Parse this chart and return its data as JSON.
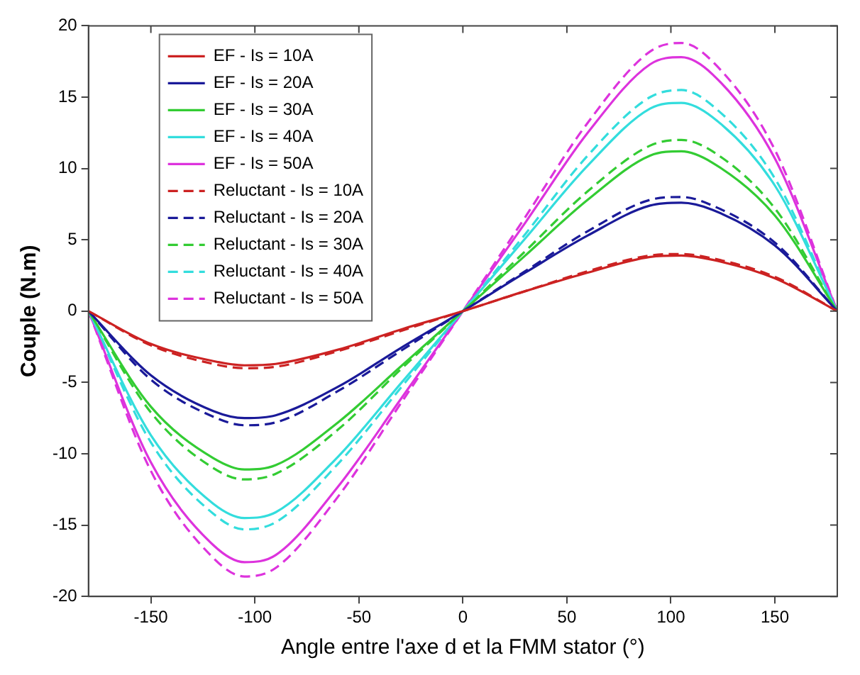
{
  "chart_data": {
    "type": "line",
    "xlabel": "Angle entre l'axe d et la FMM stator (°)",
    "ylabel": "Couple (N.m)",
    "x": [
      -180,
      -150,
      -120,
      -105,
      -90,
      -60,
      -30,
      0,
      30,
      60,
      90,
      105,
      120,
      150,
      180
    ],
    "xlim": [
      -180,
      180
    ],
    "xticks": [
      -150,
      -100,
      -50,
      0,
      50,
      100,
      150
    ],
    "ylim": [
      -20,
      20
    ],
    "yticks": [
      -20,
      -15,
      -10,
      -5,
      0,
      5,
      10,
      15,
      20
    ],
    "grid": false,
    "legend": "top left",
    "marker": "none",
    "series": [
      {
        "name": "EF - Is = 10A",
        "color": "#cc2222",
        "line_style": "solid",
        "values": [
          0,
          -2.3,
          -3.5,
          -3.8,
          -3.7,
          -2.7,
          -1.3,
          0,
          1.4,
          2.7,
          3.8,
          3.9,
          3.6,
          2.3,
          0
        ]
      },
      {
        "name": "EF - Is = 20A",
        "color": "#1a1a99",
        "line_style": "solid",
        "values": [
          0,
          -4.5,
          -7.0,
          -7.5,
          -7.3,
          -5.3,
          -2.6,
          0,
          2.7,
          5.3,
          7.4,
          7.6,
          7.1,
          4.6,
          0
        ]
      },
      {
        "name": "EF - Is = 30A",
        "color": "#33cc33",
        "line_style": "solid",
        "values": [
          0,
          -6.7,
          -10.3,
          -11.1,
          -10.8,
          -7.8,
          -3.9,
          0,
          3.9,
          7.8,
          10.9,
          11.2,
          10.4,
          6.7,
          0
        ]
      },
      {
        "name": "EF - Is = 40A",
        "color": "#33dddd",
        "line_style": "solid",
        "values": [
          0,
          -8.7,
          -13.5,
          -14.5,
          -14.1,
          -10.2,
          -5.1,
          0,
          5.1,
          10.2,
          14.2,
          14.6,
          13.6,
          8.8,
          0
        ]
      },
      {
        "name": "EF - Is = 50A",
        "color": "#dd33dd",
        "line_style": "solid",
        "values": [
          0,
          -10.6,
          -16.4,
          -17.6,
          -17.1,
          -12.3,
          -6.2,
          0,
          6.2,
          12.5,
          17.3,
          17.8,
          16.6,
          10.7,
          0
        ]
      },
      {
        "name": "Reluctant - Is = 10A",
        "color": "#cc2222",
        "line_style": "dashed",
        "values": [
          0,
          -2.4,
          -3.7,
          -4.0,
          -3.9,
          -2.8,
          -1.4,
          0,
          1.4,
          2.8,
          3.9,
          4.0,
          3.7,
          2.4,
          0
        ]
      },
      {
        "name": "Reluctant - Is = 20A",
        "color": "#1a1a99",
        "line_style": "dashed",
        "values": [
          0,
          -4.8,
          -7.4,
          -8.0,
          -7.8,
          -5.6,
          -2.8,
          0,
          2.8,
          5.6,
          7.8,
          8.0,
          7.4,
          4.8,
          0
        ]
      },
      {
        "name": "Reluctant - Is = 30A",
        "color": "#33cc33",
        "line_style": "dashed",
        "values": [
          0,
          -7.1,
          -11.0,
          -11.8,
          -11.4,
          -8.3,
          -4.1,
          0,
          4.2,
          8.4,
          11.6,
          12.0,
          11.2,
          7.2,
          0
        ]
      },
      {
        "name": "Reluctant - Is = 40A",
        "color": "#33dddd",
        "line_style": "dashed",
        "values": [
          0,
          -9.2,
          -14.2,
          -15.3,
          -14.8,
          -10.7,
          -5.4,
          0,
          5.4,
          10.9,
          15.0,
          15.5,
          14.4,
          9.3,
          0
        ]
      },
      {
        "name": "Reluctant - Is = 50A",
        "color": "#dd33dd",
        "line_style": "dashed",
        "values": [
          0,
          -11.2,
          -17.3,
          -18.6,
          -18.0,
          -13.0,
          -6.5,
          0,
          6.6,
          13.2,
          18.2,
          18.8,
          17.5,
          11.3,
          0
        ]
      }
    ]
  }
}
